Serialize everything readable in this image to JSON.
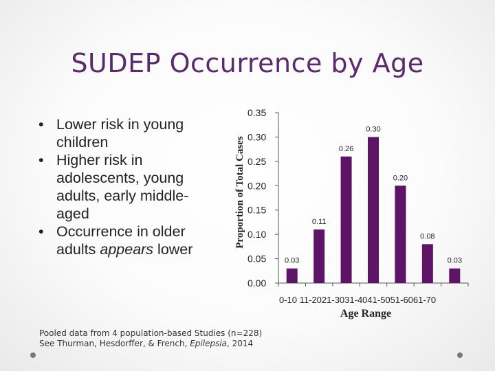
{
  "slide": {
    "title": "SUDEP Occurrence by Age",
    "bullets": [
      "Lower risk in young children",
      "Higher risk in adolescents, young adults, early middle-aged",
      "Occurrence in older adults appears lower"
    ],
    "bullet_parts": {
      "b3_before": "Occurrence in older adults ",
      "b3_emph": "appears",
      "b3_after": " lower"
    },
    "footnote_line1": "Pooled data from 4 population-based Studies (n=228)",
    "footnote_line2_prefix": "See Thurman, Hesdorffer, & French, ",
    "footnote_line2_journal": "Epilepsia",
    "footnote_line2_suffix": ", 2014"
  },
  "colors": {
    "bar": "#5e1466",
    "title": "#5b2a6e"
  },
  "chart_data": {
    "type": "bar",
    "title": "",
    "xlabel": "Age Range",
    "ylabel": "Proportion of Total Cases",
    "categories": [
      "0-10",
      "11-20",
      "21-30",
      "31-40",
      "41-50",
      "51-60",
      "61-70"
    ],
    "category_labels_row": "0-10 11-2021-3031-4041-5051-6061-70",
    "values": [
      0.03,
      0.11,
      0.26,
      0.3,
      0.2,
      0.08,
      0.03
    ],
    "data_labels": [
      "0.03",
      "0.11",
      "0.26",
      "0.30",
      "0.20",
      "0.08",
      "0.03"
    ],
    "yticks": [
      "0.00",
      "0.05",
      "0.10",
      "0.15",
      "0.20",
      "0.25",
      "0.30",
      "0.35"
    ],
    "ylim": [
      0,
      0.35
    ],
    "grid": false,
    "legend": "none"
  }
}
